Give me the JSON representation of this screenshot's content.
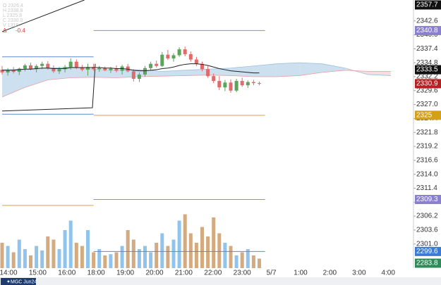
{
  "chart_data": {
    "type": "candlestick",
    "symbol": "MGC Jun24",
    "legend_lines": [
      "O 2326.4",
      "H 2338.8",
      "L 2325.8",
      "C 2330.0",
      "V 1318"
    ],
    "delta_symbol": "Δ",
    "delta_value": "-0.4",
    "ylim": [
      2296.5,
      2346.5
    ],
    "yticks": [
      2342.6,
      {
        "value": 2340.0,
        "label": "2340.0"
      },
      2337.4,
      2334.8,
      2332.2,
      2329.6,
      {
        "value": 2327.0,
        "label": "2327.0"
      },
      2324.4,
      2321.8,
      2319.2,
      2316.6,
      {
        "value": 2314.0,
        "label": "2314.0"
      },
      2311.4,
      2308.8,
      2306.2,
      2303.6,
      {
        "value": 2301.0,
        "label": "2301.0"
      }
    ],
    "time_axis": [
      "14:00",
      "15:00",
      "16:00",
      "18:00",
      "19:00",
      "20:00",
      "21:00",
      "22:00",
      "23:00",
      "5/7",
      "1:00",
      "2:00",
      "3:00",
      "4:00"
    ],
    "up_color": "#5aa55a",
    "down_color": "#e06b6b",
    "candles": [
      {
        "o": 2333.5,
        "h": 2334.2,
        "l": 2332.6,
        "c": 2333.0
      },
      {
        "o": 2333.0,
        "h": 2333.8,
        "l": 2332.4,
        "c": 2333.4
      },
      {
        "o": 2333.4,
        "h": 2334.0,
        "l": 2332.8,
        "c": 2333.1
      },
      {
        "o": 2333.1,
        "h": 2333.9,
        "l": 2332.5,
        "c": 2333.7
      },
      {
        "o": 2333.7,
        "h": 2334.6,
        "l": 2333.2,
        "c": 2334.3
      },
      {
        "o": 2334.3,
        "h": 2334.8,
        "l": 2333.4,
        "c": 2333.6
      },
      {
        "o": 2333.6,
        "h": 2334.5,
        "l": 2333.0,
        "c": 2334.2
      },
      {
        "o": 2334.2,
        "h": 2335.0,
        "l": 2333.6,
        "c": 2334.6
      },
      {
        "o": 2334.6,
        "h": 2335.1,
        "l": 2333.5,
        "c": 2333.8
      },
      {
        "o": 2333.8,
        "h": 2334.3,
        "l": 2332.9,
        "c": 2333.2
      },
      {
        "o": 2333.2,
        "h": 2334.0,
        "l": 2332.7,
        "c": 2333.6
      },
      {
        "o": 2333.6,
        "h": 2334.4,
        "l": 2333.0,
        "c": 2334.0
      },
      {
        "o": 2334.0,
        "h": 2335.6,
        "l": 2333.5,
        "c": 2335.0
      },
      {
        "o": 2335.0,
        "h": 2335.4,
        "l": 2333.6,
        "c": 2333.9
      },
      {
        "o": 2333.9,
        "h": 2334.4,
        "l": 2333.2,
        "c": 2333.5
      },
      {
        "o": 2333.5,
        "h": 2334.6,
        "l": 2332.4,
        "c": 2334.0
      },
      {
        "o": 2334.0,
        "h": 2334.6,
        "l": 2333.3,
        "c": 2333.6
      },
      {
        "o": 2333.6,
        "h": 2334.2,
        "l": 2333.1,
        "c": 2333.8
      },
      {
        "o": 2333.8,
        "h": 2334.1,
        "l": 2333.2,
        "c": 2333.4
      },
      {
        "o": 2333.4,
        "h": 2334.0,
        "l": 2332.9,
        "c": 2333.7
      },
      {
        "o": 2333.7,
        "h": 2334.3,
        "l": 2333.0,
        "c": 2333.3
      },
      {
        "o": 2333.3,
        "h": 2334.4,
        "l": 2332.6,
        "c": 2334.1
      },
      {
        "o": 2334.1,
        "h": 2334.6,
        "l": 2333.0,
        "c": 2333.2
      },
      {
        "o": 2333.2,
        "h": 2333.6,
        "l": 2331.3,
        "c": 2331.8
      },
      {
        "o": 2331.8,
        "h": 2333.0,
        "l": 2331.2,
        "c": 2332.6
      },
      {
        "o": 2332.6,
        "h": 2334.2,
        "l": 2332.2,
        "c": 2333.8
      },
      {
        "o": 2333.8,
        "h": 2335.0,
        "l": 2333.4,
        "c": 2334.6
      },
      {
        "o": 2334.6,
        "h": 2335.2,
        "l": 2333.9,
        "c": 2334.2
      },
      {
        "o": 2334.2,
        "h": 2336.8,
        "l": 2334.0,
        "c": 2336.3
      },
      {
        "o": 2336.3,
        "h": 2337.2,
        "l": 2335.3,
        "c": 2335.6
      },
      {
        "o": 2335.6,
        "h": 2336.6,
        "l": 2335.0,
        "c": 2336.2
      },
      {
        "o": 2336.2,
        "h": 2337.7,
        "l": 2335.9,
        "c": 2337.3
      },
      {
        "o": 2337.3,
        "h": 2337.8,
        "l": 2336.0,
        "c": 2336.4
      },
      {
        "o": 2336.4,
        "h": 2336.9,
        "l": 2335.0,
        "c": 2335.4
      },
      {
        "o": 2335.4,
        "h": 2335.9,
        "l": 2334.2,
        "c": 2334.6
      },
      {
        "o": 2334.6,
        "h": 2335.0,
        "l": 2333.2,
        "c": 2333.6
      },
      {
        "o": 2333.6,
        "h": 2334.2,
        "l": 2332.0,
        "c": 2332.3
      },
      {
        "o": 2332.3,
        "h": 2332.8,
        "l": 2331.0,
        "c": 2331.4
      },
      {
        "o": 2331.4,
        "h": 2332.3,
        "l": 2329.7,
        "c": 2330.2
      },
      {
        "o": 2330.2,
        "h": 2331.6,
        "l": 2329.5,
        "c": 2331.1
      },
      {
        "o": 2331.1,
        "h": 2331.7,
        "l": 2329.2,
        "c": 2329.6
      },
      {
        "o": 2329.6,
        "h": 2331.8,
        "l": 2329.3,
        "c": 2331.4
      },
      {
        "o": 2331.4,
        "h": 2332.0,
        "l": 2330.3,
        "c": 2330.6
      },
      {
        "o": 2330.6,
        "h": 2331.5,
        "l": 2330.1,
        "c": 2331.2
      },
      {
        "o": 2331.2,
        "h": 2331.6,
        "l": 2330.6,
        "c": 2331.0
      },
      {
        "o": 2331.0,
        "h": 2331.3,
        "l": 2330.6,
        "c": 2330.9
      }
    ],
    "ma": {
      "color": "#222222",
      "values": [
        2333.4,
        2333.4,
        2333.4,
        2333.5,
        2333.6,
        2333.6,
        2333.7,
        2333.8,
        2333.8,
        2333.7,
        2333.7,
        2333.7,
        2333.9,
        2333.9,
        2333.9,
        2333.9,
        2333.9,
        2333.9,
        2333.8,
        2333.8,
        2333.7,
        2333.7,
        2333.6,
        2333.4,
        2333.3,
        2333.3,
        2333.4,
        2333.5,
        2333.7,
        2333.8,
        2334.0,
        2334.3,
        2334.5,
        2334.6,
        2334.6,
        2334.5,
        2334.3,
        2334.0,
        2333.7,
        2333.5,
        2333.3,
        2333.2,
        2333.1,
        2333.0,
        2332.9,
        2332.9
      ]
    },
    "volume": {
      "vlim": [
        0,
        100
      ],
      "up_color": "#90c4ec",
      "down_color": "#d4aa80",
      "values": [
        40,
        35,
        25,
        45,
        30,
        20,
        35,
        28,
        50,
        45,
        30,
        60,
        75,
        40,
        35,
        60,
        25,
        30,
        20,
        22,
        25,
        35,
        60,
        45,
        30,
        35,
        25,
        40,
        55,
        35,
        45,
        75,
        85,
        55,
        40,
        65,
        50,
        80,
        55,
        40,
        35,
        20,
        25,
        30,
        20,
        15
      ]
    },
    "cloud": {
      "up_color": "#b7d3ea",
      "down_color": "#f3cfcf",
      "slots": [
        0,
        4,
        8,
        12,
        16,
        20,
        24,
        28,
        32,
        36,
        40,
        44,
        48,
        52,
        56,
        60,
        64,
        68
      ],
      "span_a": [
        2333.5,
        2333.6,
        2333.8,
        2334.0,
        2333.6,
        2333.4,
        2333.5,
        2333.2,
        2333.4,
        2333.6,
        2333.8,
        2334.2,
        2334.6,
        2334.8,
        2334.6,
        2333.8,
        2332.6,
        2332.4
      ],
      "span_b": [
        2328.4,
        2330.2,
        2331.6,
        2332.0,
        2332.1,
        2332.0,
        2332.2,
        2332.3,
        2332.4,
        2332.5,
        2332.4,
        2332.2,
        2332.2,
        2332.4,
        2333.0,
        2333.4,
        2333.2,
        2333.2
      ]
    },
    "levels": [
      {
        "value": 2335.9,
        "from": 0,
        "to": 16,
        "color": "#5b8bd0"
      },
      {
        "value": 2325.2,
        "from": 0,
        "to": 16,
        "color": "#5b8bd0"
      },
      {
        "value": 2308.2,
        "from": 0,
        "to": 16,
        "color": "#d9a441"
      },
      {
        "value": 2340.8,
        "from": 16,
        "to": 46,
        "color": "#8a8ad6"
      },
      {
        "value": 2325.0,
        "from": 16,
        "to": 46,
        "color": "#d9a441"
      },
      {
        "value": 2309.3,
        "from": 16,
        "to": 46,
        "color": "#8a8ad6"
      },
      {
        "value": 2299.6,
        "from": 16,
        "to": 46,
        "color": "#5b8bd0"
      }
    ],
    "lines": [
      {
        "color": "#222222",
        "slots": [
          0,
          15.8,
          16.3
        ],
        "values": [
          2325.8,
          2326.4,
          2334.6
        ]
      },
      {
        "color": "#222222",
        "slots": [
          0,
          14.4
        ],
        "values": [
          2340.6,
          2346.5
        ]
      }
    ],
    "badges": [
      {
        "value": 2357.7,
        "color": "#111111"
      },
      {
        "value": 2340.8,
        "color": "#8a80d0"
      },
      {
        "value": 2333.5,
        "color": "#111111"
      },
      {
        "value": 2330.9,
        "color": "#b22222"
      },
      {
        "value": 2325.0,
        "color": "#d4a017"
      },
      {
        "value": 2309.3,
        "color": "#8a80d0"
      },
      {
        "value": 2299.6,
        "color": "#3a7bd5"
      },
      {
        "value": 2283.8,
        "color": "#2e8b57"
      }
    ]
  }
}
